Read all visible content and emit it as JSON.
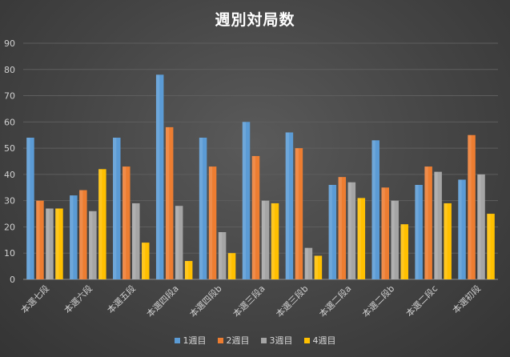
{
  "chart_data": {
    "type": "bar",
    "title": "週別対局数",
    "categories": [
      "本選七段",
      "本選六段",
      "本選五段",
      "本選四段a",
      "本選四段b",
      "本選三段a",
      "本選三段b",
      "本選二段a",
      "本選二段b",
      "本選二段c",
      "本選初段"
    ],
    "series": [
      {
        "name": "1週目",
        "color": "#5b9bd5",
        "values": [
          54,
          32,
          54,
          78,
          54,
          60,
          56,
          36,
          53,
          36,
          38
        ]
      },
      {
        "name": "2週目",
        "color": "#ed7d31",
        "values": [
          30,
          34,
          43,
          58,
          43,
          47,
          50,
          39,
          35,
          43,
          55
        ]
      },
      {
        "name": "3週目",
        "color": "#a5a5a5",
        "values": [
          27,
          26,
          29,
          28,
          18,
          30,
          12,
          37,
          30,
          41,
          40
        ]
      },
      {
        "name": "4週目",
        "color": "#ffc000",
        "values": [
          27,
          42,
          14,
          7,
          10,
          29,
          9,
          31,
          21,
          29,
          25
        ]
      }
    ],
    "ylim": [
      0,
      90
    ],
    "yticks": [
      0,
      10,
      20,
      30,
      40,
      50,
      60,
      70,
      80,
      90
    ],
    "grid": true,
    "legend": "bottom"
  }
}
